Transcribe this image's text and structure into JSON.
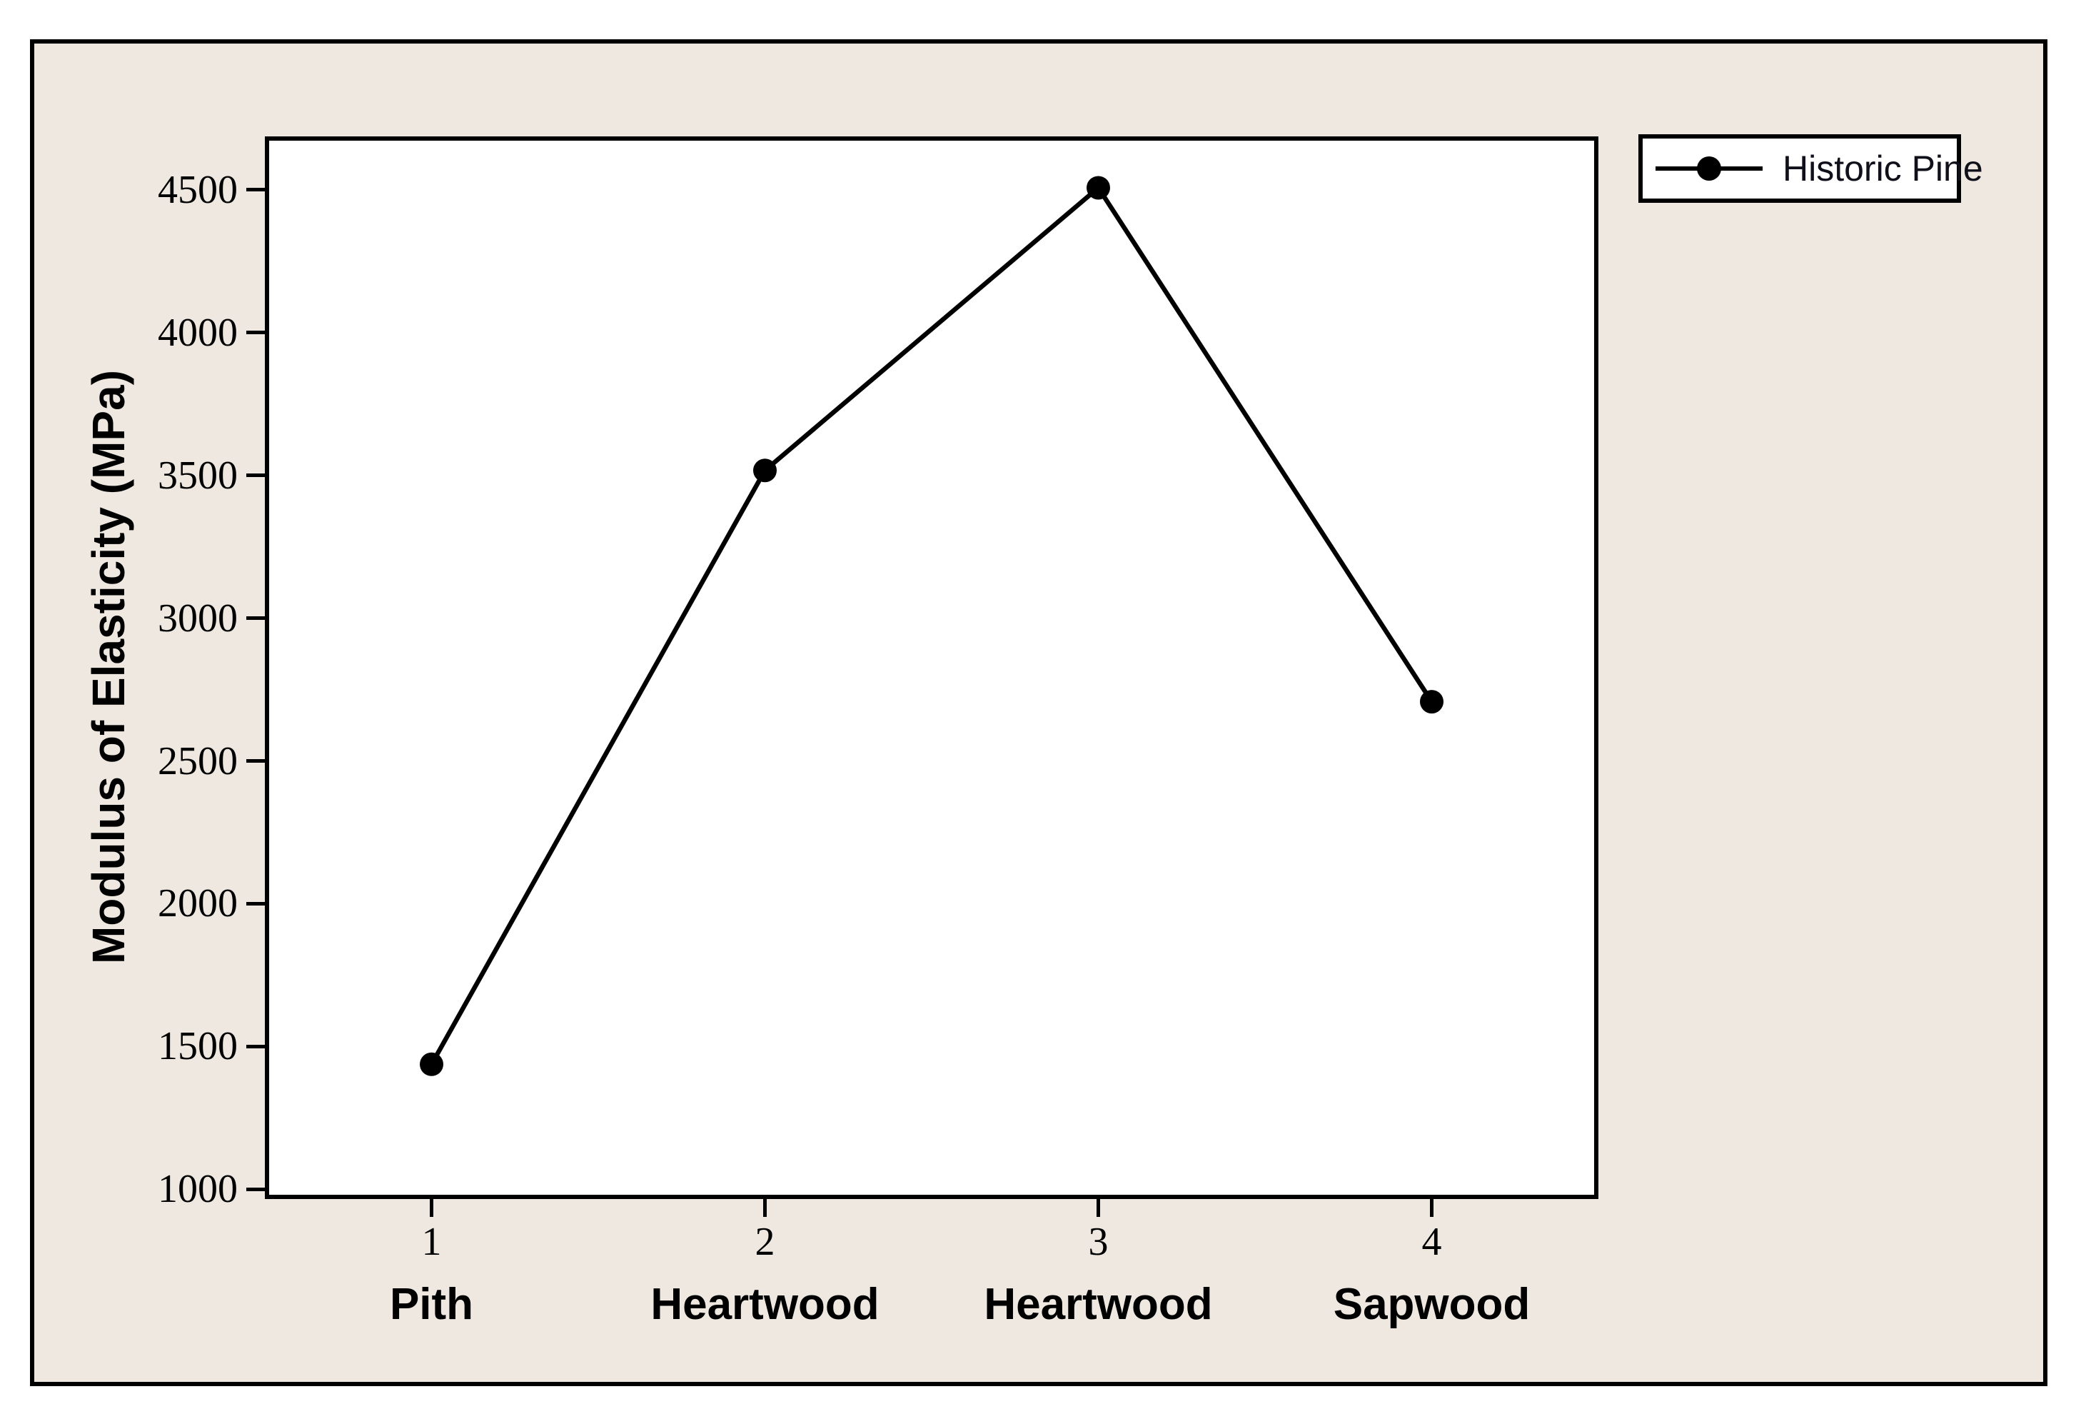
{
  "colors": {
    "outer_background": "#FFFFFF",
    "figure_background": "#EEE8E0",
    "plot_background": "#FFFFFF",
    "line_and_text": "#000000"
  },
  "chart_data": {
    "type": "line",
    "title": "",
    "xlabel": "",
    "ylabel": "Modulus of Elasticity (MPa)",
    "series": [
      {
        "name": "Historic Pine",
        "x": [
          1,
          2,
          3,
          4
        ],
        "values": [
          1440,
          3520,
          4510,
          2710
        ],
        "color": "#000000",
        "marker": "filled-circle"
      }
    ],
    "x_ticks": [
      1,
      2,
      3,
      4
    ],
    "x_tick_labels": [
      "1",
      "2",
      "3",
      "4"
    ],
    "x_category_labels": [
      "Pith",
      "Heartwood",
      "Heartwood",
      "Sapwood"
    ],
    "y_ticks": [
      4500,
      4000,
      3500,
      3000,
      2500,
      2000,
      1500,
      1000
    ],
    "xlim": [
      0.5,
      4.5
    ],
    "ylim": [
      968,
      4690
    ],
    "grid": false,
    "legend": {
      "position": "outside-top-right",
      "entries": [
        {
          "label": "Historic Pine",
          "marker": "filled-circle-on-line"
        }
      ]
    }
  }
}
